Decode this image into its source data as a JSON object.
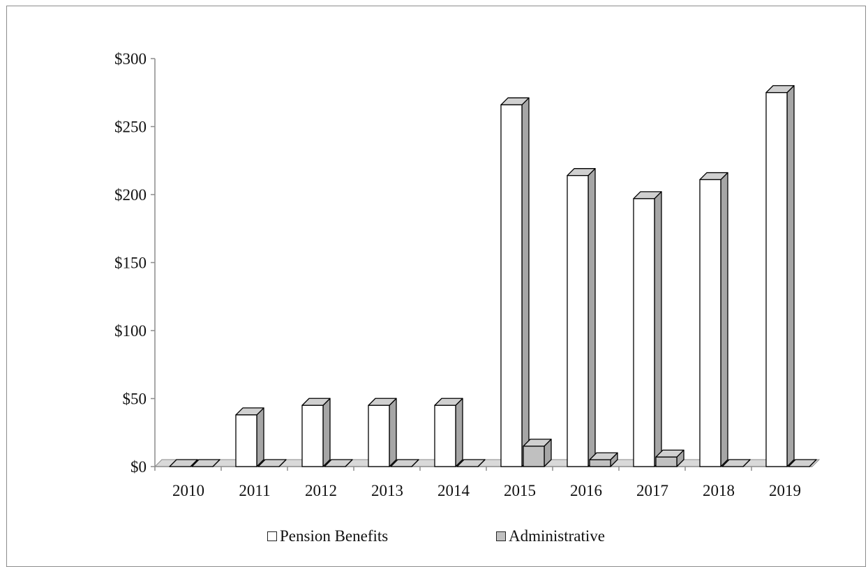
{
  "chart_data": {
    "type": "bar",
    "style": "3d-clustered-column",
    "categories": [
      "2010",
      "2011",
      "2012",
      "2013",
      "2014",
      "2015",
      "2016",
      "2017",
      "2018",
      "2019"
    ],
    "series": [
      {
        "name": "Pension Benefits",
        "color": "#ffffff",
        "values": [
          0,
          38,
          45,
          45,
          45,
          266,
          214,
          197,
          211,
          275
        ]
      },
      {
        "name": "Administrative",
        "color": "#c0c0c0",
        "values": [
          0,
          0,
          0,
          0,
          0,
          15,
          5,
          7,
          0,
          0
        ]
      }
    ],
    "ylim": [
      0,
      300
    ],
    "yticks": [
      0,
      50,
      100,
      150,
      200,
      250,
      300
    ],
    "ytick_labels": [
      "$0",
      "$50",
      "$100",
      "$150",
      "$200",
      "$250",
      "$300"
    ],
    "grid": false,
    "legend_position": "bottom"
  },
  "legend": {
    "pension_label": "Pension Benefits",
    "admin_label": "Administrative"
  }
}
